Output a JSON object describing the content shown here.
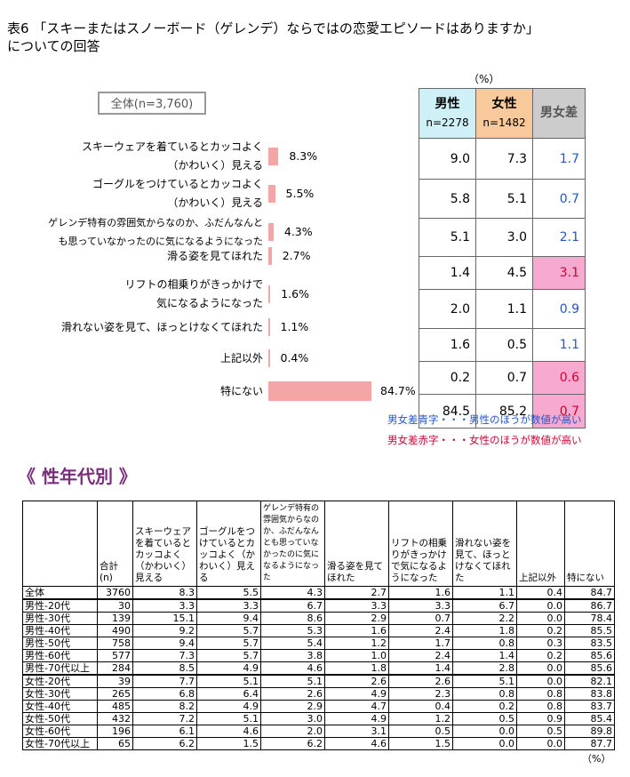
{
  "title_line1": "表6 「スキーまたはスノーボード（ゲレンデ）ならではの恋愛エピソードはありますか」",
  "title_line2": "についての回答",
  "pct_unit": "（%）",
  "total_label": "全体(n=3,760)",
  "colors": {
    "bar": "#F4A6A6",
    "male_head": "#CFF0F6",
    "female_head": "#F8C99A",
    "diff_head": "#CCCCCC",
    "diff_red_bg": "#F7A9CF",
    "blue": "#2255CC",
    "red": "#CC0033",
    "section": "#7A2E7A"
  },
  "chart_data": {
    "type": "bar",
    "orientation": "horizontal",
    "categories": [
      [
        "スキーウェアを着ているとカッコよく",
        "（かわいく）見える"
      ],
      [
        "ゴーグルをつけているとカッコよく",
        "（かわいく）見える"
      ],
      [
        "ゲレンデ特有の雰囲気からなのか、ふだんなんと",
        "も思っていなかったのに気になるようになった"
      ],
      [
        "滑る姿を見てほれた"
      ],
      [
        "リフトの相乗りがきっかけで",
        "気になるようになった"
      ],
      [
        "滑れない姿を見て、ほっとけなくてほれた"
      ],
      [
        "上記以外"
      ],
      [
        "特にない"
      ]
    ],
    "values": [
      8.3,
      5.5,
      4.3,
      2.7,
      1.6,
      1.1,
      0.4,
      84.7
    ],
    "value_labels": [
      "8.3%",
      "5.5%",
      "4.3%",
      "2.7%",
      "1.6%",
      "1.1%",
      "0.4%",
      "84.7%"
    ]
  },
  "gender_table": {
    "male_label": "男性",
    "male_n": "n=2278",
    "female_label": "女性",
    "female_n": "n=1482",
    "diff_label": "男女差",
    "rows": [
      {
        "m": "9.0",
        "f": "7.3",
        "d": "1.7",
        "c": "blue"
      },
      {
        "m": "5.8",
        "f": "5.1",
        "d": "0.7",
        "c": "blue"
      },
      {
        "m": "5.1",
        "f": "3.0",
        "d": "2.1",
        "c": "blue"
      },
      {
        "m": "1.4",
        "f": "4.5",
        "d": "3.1",
        "c": "red"
      },
      {
        "m": "2.0",
        "f": "1.1",
        "d": "0.9",
        "c": "blue"
      },
      {
        "m": "1.6",
        "f": "0.5",
        "d": "1.1",
        "c": "blue"
      },
      {
        "m": "0.2",
        "f": "0.7",
        "d": "0.6",
        "c": "red"
      },
      {
        "m": "84.5",
        "f": "85.2",
        "d": "0.7",
        "c": "red"
      }
    ]
  },
  "note_blue": "男女差青字・・・男性のほうが数値が高い",
  "note_red": "男女差赤字・・・女性のほうが数値が高い",
  "section_title": "《 性年代別 》",
  "detail_table": {
    "headers": [
      "合計\n(n)",
      "スキーウェアを着ているとカッコよく（かわいく）見える",
      "ゴーグルをつけているとカッコよく（かわいく）見える",
      "ゲレンデ特有の雰囲気からなのか、ふだんなんとも思っていなかったのに気になるようになった",
      "滑る姿を見てほれた",
      "リフトの相乗りがきっかけで気になるようになった",
      "滑れない姿を見て、ほっとけなくてほれた",
      "上記以外",
      "特にない"
    ],
    "rows": [
      [
        "全体",
        "3760",
        "8.3",
        "5.5",
        "4.3",
        "2.7",
        "1.6",
        "1.1",
        "0.4",
        "84.7"
      ],
      [
        "男性-20代",
        "30",
        "3.3",
        "3.3",
        "6.7",
        "3.3",
        "3.3",
        "6.7",
        "0.0",
        "86.7"
      ],
      [
        "男性-30代",
        "139",
        "15.1",
        "9.4",
        "8.6",
        "2.9",
        "0.7",
        "2.2",
        "0.0",
        "78.4"
      ],
      [
        "男性-40代",
        "490",
        "9.2",
        "5.7",
        "5.3",
        "1.6",
        "2.4",
        "1.8",
        "0.2",
        "85.5"
      ],
      [
        "男性-50代",
        "758",
        "9.4",
        "5.7",
        "5.4",
        "1.2",
        "1.7",
        "0.8",
        "0.3",
        "83.5"
      ],
      [
        "男性-60代",
        "577",
        "7.3",
        "5.7",
        "3.8",
        "1.0",
        "2.4",
        "1.4",
        "0.2",
        "85.6"
      ],
      [
        "男性-70代以上",
        "284",
        "8.5",
        "4.9",
        "4.6",
        "1.8",
        "1.4",
        "2.8",
        "0.0",
        "85.6"
      ],
      [
        "女性-20代",
        "39",
        "7.7",
        "5.1",
        "5.1",
        "2.6",
        "2.6",
        "5.1",
        "0.0",
        "82.1"
      ],
      [
        "女性-30代",
        "265",
        "6.8",
        "6.4",
        "2.6",
        "4.9",
        "2.3",
        "0.8",
        "0.8",
        "83.8"
      ],
      [
        "女性-40代",
        "485",
        "8.2",
        "4.9",
        "2.9",
        "4.7",
        "0.4",
        "0.2",
        "0.8",
        "83.7"
      ],
      [
        "女性-50代",
        "432",
        "7.2",
        "5.1",
        "3.0",
        "4.9",
        "1.2",
        "0.5",
        "0.9",
        "85.4"
      ],
      [
        "女性-60代",
        "196",
        "6.1",
        "4.6",
        "2.0",
        "3.1",
        "0.5",
        "0.0",
        "0.5",
        "89.8"
      ],
      [
        "女性-70代以上",
        "65",
        "6.2",
        "1.5",
        "6.2",
        "4.6",
        "1.5",
        "0.0",
        "0.0",
        "87.7"
      ]
    ],
    "unit": "（%）"
  }
}
